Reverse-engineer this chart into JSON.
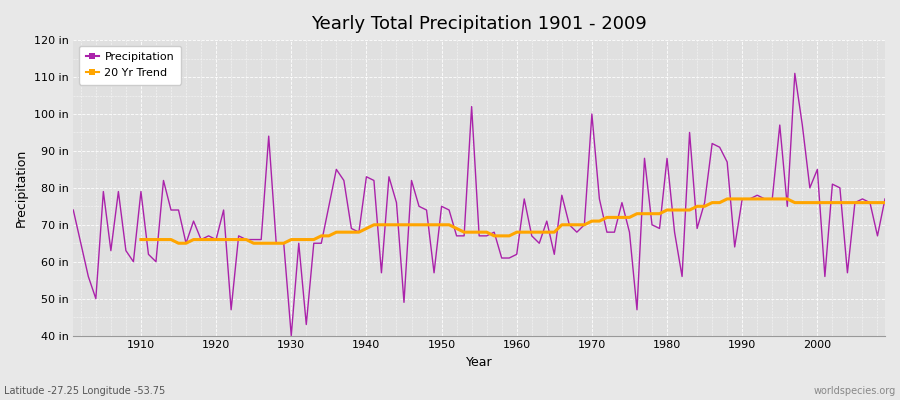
{
  "title": "Yearly Total Precipitation 1901 - 2009",
  "xlabel": "Year",
  "ylabel": "Precipitation",
  "footnote_left": "Latitude -27.25 Longitude -53.75",
  "footnote_right": "worldspecies.org",
  "legend_precip": "Precipitation",
  "legend_trend": "20 Yr Trend",
  "ylim": [
    40,
    120
  ],
  "yticks": [
    40,
    50,
    60,
    70,
    80,
    90,
    100,
    110,
    120
  ],
  "ytick_labels": [
    "40 in",
    "50 in",
    "60 in",
    "70 in",
    "80 in",
    "90 in",
    "100 in",
    "110 in",
    "120 in"
  ],
  "xticks": [
    1910,
    1920,
    1930,
    1940,
    1950,
    1960,
    1970,
    1980,
    1990,
    2000
  ],
  "bg_color": "#e8e8e8",
  "plot_bg_color": "#e0e0e0",
  "precip_color": "#aa22aa",
  "trend_color": "#ffa500",
  "grid_color": "#ffffff",
  "years": [
    1901,
    1902,
    1903,
    1904,
    1905,
    1906,
    1907,
    1908,
    1909,
    1910,
    1911,
    1912,
    1913,
    1914,
    1915,
    1916,
    1917,
    1918,
    1919,
    1920,
    1921,
    1922,
    1923,
    1924,
    1925,
    1926,
    1927,
    1928,
    1929,
    1930,
    1931,
    1932,
    1933,
    1934,
    1935,
    1936,
    1937,
    1938,
    1939,
    1940,
    1941,
    1942,
    1943,
    1944,
    1945,
    1946,
    1947,
    1948,
    1949,
    1950,
    1951,
    1952,
    1953,
    1954,
    1955,
    1956,
    1957,
    1958,
    1959,
    1960,
    1961,
    1962,
    1963,
    1964,
    1965,
    1966,
    1967,
    1968,
    1969,
    1970,
    1971,
    1972,
    1973,
    1974,
    1975,
    1976,
    1977,
    1978,
    1979,
    1980,
    1981,
    1982,
    1983,
    1984,
    1985,
    1986,
    1987,
    1988,
    1989,
    1990,
    1991,
    1992,
    1993,
    1994,
    1995,
    1996,
    1997,
    1998,
    1999,
    2000,
    2001,
    2002,
    2003,
    2004,
    2005,
    2006,
    2007,
    2008,
    2009
  ],
  "precip": [
    74,
    65,
    56,
    50,
    79,
    63,
    79,
    63,
    60,
    79,
    62,
    60,
    82,
    74,
    74,
    65,
    71,
    66,
    67,
    66,
    74,
    47,
    67,
    66,
    66,
    66,
    94,
    65,
    65,
    40,
    65,
    43,
    65,
    65,
    75,
    85,
    82,
    69,
    68,
    83,
    82,
    57,
    83,
    76,
    49,
    82,
    75,
    74,
    57,
    75,
    74,
    67,
    67,
    102,
    67,
    67,
    68,
    61,
    61,
    62,
    77,
    67,
    65,
    71,
    62,
    78,
    70,
    68,
    70,
    100,
    77,
    68,
    68,
    76,
    68,
    47,
    88,
    70,
    69,
    88,
    68,
    56,
    95,
    69,
    76,
    92,
    91,
    87,
    64,
    77,
    77,
    78,
    77,
    77,
    97,
    75,
    111,
    97,
    80,
    85,
    56,
    81,
    80,
    57,
    76,
    77,
    76,
    67,
    77
  ],
  "trend": [
    null,
    null,
    null,
    null,
    null,
    null,
    null,
    null,
    null,
    66,
    66,
    66,
    66,
    66,
    65,
    65,
    66,
    66,
    66,
    66,
    66,
    66,
    66,
    66,
    65,
    65,
    65,
    65,
    65,
    66,
    66,
    66,
    66,
    67,
    67,
    68,
    68,
    68,
    68,
    69,
    70,
    70,
    70,
    70,
    70,
    70,
    70,
    70,
    70,
    70,
    70,
    69,
    68,
    68,
    68,
    68,
    67,
    67,
    67,
    68,
    68,
    68,
    68,
    68,
    68,
    70,
    70,
    70,
    70,
    71,
    71,
    72,
    72,
    72,
    72,
    73,
    73,
    73,
    73,
    74,
    74,
    74,
    74,
    75,
    75,
    76,
    76,
    77,
    77,
    77,
    77,
    77,
    77,
    77,
    77,
    77,
    76,
    76,
    76,
    76,
    76,
    76,
    76,
    76,
    76,
    76,
    76,
    76,
    76
  ]
}
